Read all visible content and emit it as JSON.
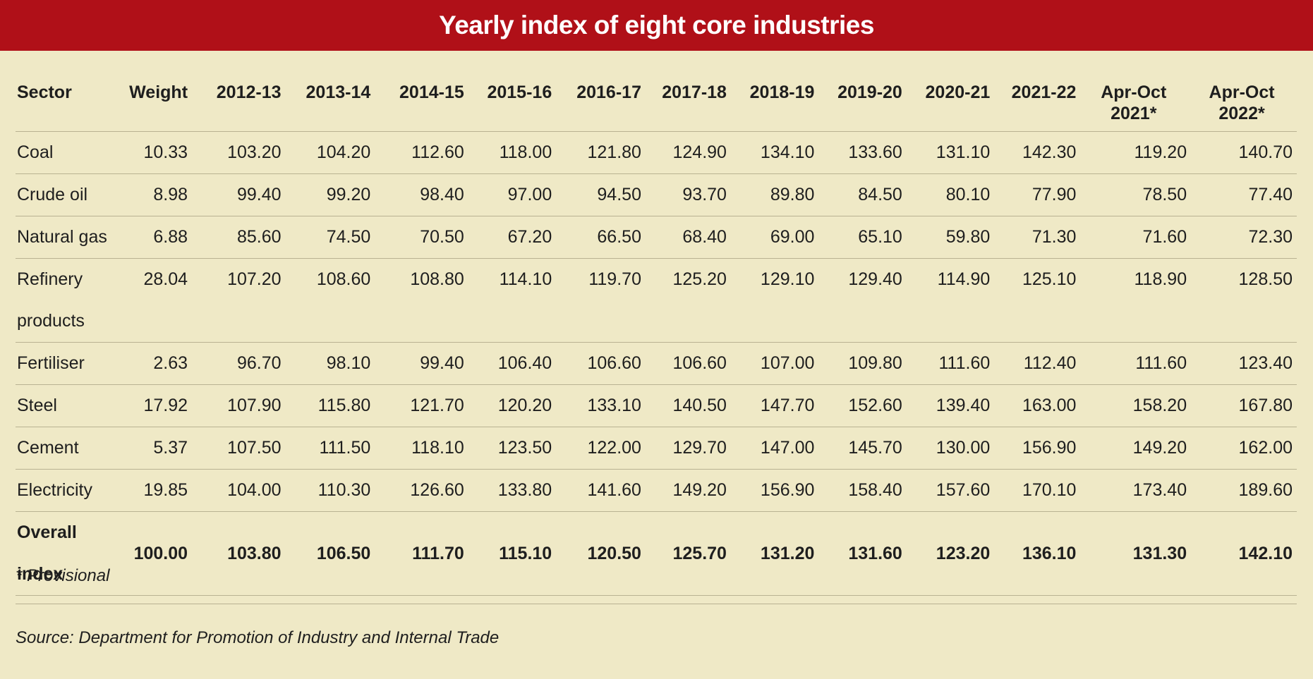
{
  "title": "Yearly index of eight core industries",
  "columns": [
    "Sector",
    "Weight",
    "2012-13",
    "2013-14",
    "2014-15",
    "2015-16",
    "2016-17",
    "2017-18",
    "2018-19",
    "2019-20",
    "2020-21",
    "2021-22"
  ],
  "period_columns": [
    {
      "line1": "Apr-Oct",
      "line2": "2021*"
    },
    {
      "line1": "Apr-Oct",
      "line2": "2022*"
    }
  ],
  "rows": [
    {
      "sector": "Coal",
      "values": [
        "10.33",
        "103.20",
        "104.20",
        "112.60",
        "118.00",
        "121.80",
        "124.90",
        "134.10",
        "133.60",
        "131.10",
        "142.30",
        "119.20",
        "140.70"
      ]
    },
    {
      "sector": "Crude oil",
      "values": [
        "8.98",
        "99.40",
        "99.20",
        "98.40",
        "97.00",
        "94.50",
        "93.70",
        "89.80",
        "84.50",
        "80.10",
        "77.90",
        "78.50",
        "77.40"
      ]
    },
    {
      "sector": "Natural gas",
      "values": [
        "6.88",
        "85.60",
        "74.50",
        "70.50",
        "67.20",
        "66.50",
        "68.40",
        "69.00",
        "65.10",
        "59.80",
        "71.30",
        "71.60",
        "72.30"
      ]
    },
    {
      "sector": "Refinery products",
      "values": [
        "28.04",
        "107.20",
        "108.60",
        "108.80",
        "114.10",
        "119.70",
        "125.20",
        "129.10",
        "129.40",
        "114.90",
        "125.10",
        "118.90",
        "128.50"
      ]
    },
    {
      "sector": "Fertiliser",
      "values": [
        "2.63",
        "96.70",
        "98.10",
        "99.40",
        "106.40",
        "106.60",
        "106.60",
        "107.00",
        "109.80",
        "111.60",
        "112.40",
        "111.60",
        "123.40"
      ]
    },
    {
      "sector": "Steel",
      "values": [
        "17.92",
        "107.90",
        "115.80",
        "121.70",
        "120.20",
        "133.10",
        "140.50",
        "147.70",
        "152.60",
        "139.40",
        "163.00",
        "158.20",
        "167.80"
      ]
    },
    {
      "sector": "Cement",
      "values": [
        "5.37",
        "107.50",
        "111.50",
        "118.10",
        "123.50",
        "122.00",
        "129.70",
        "147.00",
        "145.70",
        "130.00",
        "156.90",
        "149.20",
        "162.00"
      ]
    },
    {
      "sector": "Electricity",
      "values": [
        "19.85",
        "104.00",
        "110.30",
        "126.60",
        "133.80",
        "141.60",
        "149.20",
        "156.90",
        "158.40",
        "157.60",
        "170.10",
        "173.40",
        "189.60"
      ]
    },
    {
      "sector": "Overall index",
      "values": [
        "100.00",
        "103.80",
        "106.50",
        "111.70",
        "115.10",
        "120.50",
        "125.70",
        "131.20",
        "131.60",
        "123.20",
        "136.10",
        "131.30",
        "142.10"
      ]
    }
  ],
  "note": "* Provisional",
  "source": "Source: Department for Promotion of Industry and Internal Trade"
}
